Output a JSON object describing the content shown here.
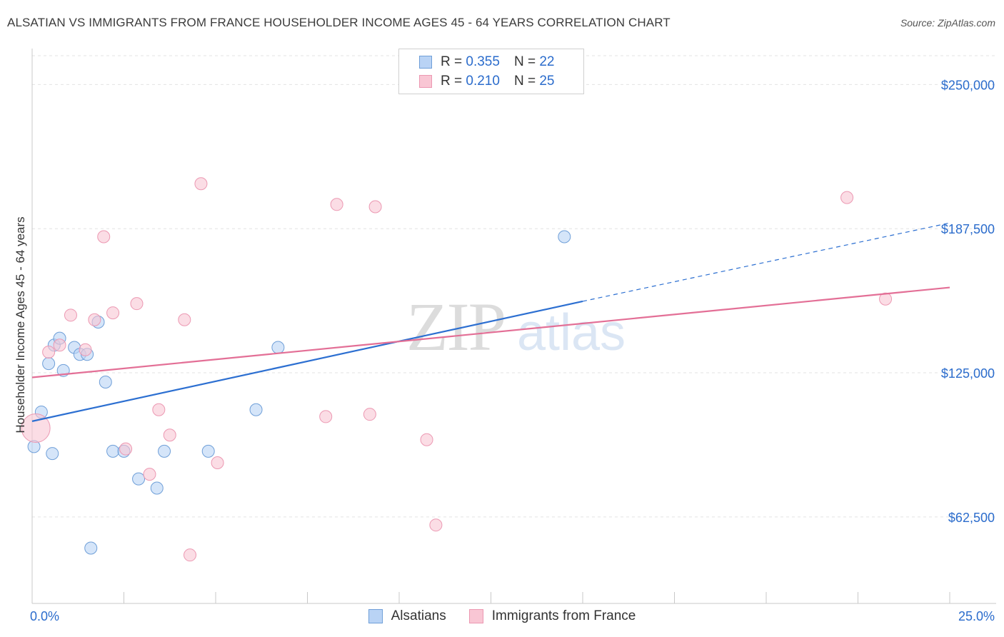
{
  "header": {
    "title": "ALSATIAN VS IMMIGRANTS FROM FRANCE HOUSEHOLDER INCOME AGES 45 - 64 YEARS CORRELATION CHART",
    "source": "Source: ZipAtlas.com"
  },
  "watermark": {
    "zip": "ZIP",
    "atlas": "atlas"
  },
  "legend": {
    "r_label": "R =",
    "n_label": "N =",
    "rows": [
      {
        "r": "0.355",
        "n": "22"
      },
      {
        "r": "0.210",
        "n": "25"
      }
    ]
  },
  "colors": {
    "alsatians_fill": "#b9d3f5",
    "alsatians_stroke": "#6f9fd8",
    "alsatians_line": "#2c6fd1",
    "france_fill": "#f9c6d4",
    "france_stroke": "#ec98b2",
    "france_line": "#e36f96",
    "value_text": "#2b6ccc"
  },
  "chart_data": {
    "type": "scatter",
    "title": "ALSATIAN VS IMMIGRANTS FROM FRANCE HOUSEHOLDER INCOME AGES 45 - 64 YEARS CORRELATION CHART",
    "xlabel": "",
    "ylabel": "Householder Income Ages 45 - 64 years",
    "xlim": [
      0,
      25
    ],
    "ylim": [
      25000,
      262500
    ],
    "x_tick_labels": [
      "0.0%",
      "25.0%"
    ],
    "y_ticks": [
      62500,
      125000,
      187500,
      250000
    ],
    "y_tick_labels": [
      "$62,500",
      "$125,000",
      "$187,500",
      "$250,000"
    ],
    "grid": true,
    "legend_position": "top-center",
    "series": [
      {
        "name": "Alsatians",
        "r": 0.355,
        "n": 22,
        "points": [
          {
            "x": 0.05,
            "y": 93000
          },
          {
            "x": 0.25,
            "y": 108000
          },
          {
            "x": 0.45,
            "y": 129000
          },
          {
            "x": 0.55,
            "y": 90000
          },
          {
            "x": 0.6,
            "y": 137000
          },
          {
            "x": 0.75,
            "y": 140000
          },
          {
            "x": 0.85,
            "y": 126000
          },
          {
            "x": 1.15,
            "y": 136000
          },
          {
            "x": 1.3,
            "y": 133000
          },
          {
            "x": 1.5,
            "y": 133000
          },
          {
            "x": 1.6,
            "y": 49000
          },
          {
            "x": 1.8,
            "y": 147000
          },
          {
            "x": 2.0,
            "y": 121000
          },
          {
            "x": 2.2,
            "y": 91000
          },
          {
            "x": 2.5,
            "y": 91000
          },
          {
            "x": 2.9,
            "y": 79000
          },
          {
            "x": 3.4,
            "y": 75000
          },
          {
            "x": 3.6,
            "y": 91000
          },
          {
            "x": 4.8,
            "y": 91000
          },
          {
            "x": 6.1,
            "y": 109000
          },
          {
            "x": 6.7,
            "y": 136000
          },
          {
            "x": 14.5,
            "y": 184000
          }
        ],
        "trend": {
          "x0": 0.0,
          "y0": 104000,
          "x1": 15.0,
          "y1": 156000,
          "dashed_to_x": 25.0,
          "dashed_to_y": 190000
        }
      },
      {
        "name": "Immigrants from France",
        "r": 0.21,
        "n": 25,
        "points": [
          {
            "x": 0.1,
            "y": 101000
          },
          {
            "x": 0.45,
            "y": 134000
          },
          {
            "x": 0.75,
            "y": 137000
          },
          {
            "x": 1.05,
            "y": 150000
          },
          {
            "x": 1.45,
            "y": 135000
          },
          {
            "x": 1.7,
            "y": 148000
          },
          {
            "x": 1.95,
            "y": 184000
          },
          {
            "x": 2.2,
            "y": 151000
          },
          {
            "x": 2.55,
            "y": 92000
          },
          {
            "x": 2.85,
            "y": 155000
          },
          {
            "x": 3.2,
            "y": 81000
          },
          {
            "x": 3.45,
            "y": 109000
          },
          {
            "x": 3.75,
            "y": 98000
          },
          {
            "x": 4.15,
            "y": 148000
          },
          {
            "x": 4.3,
            "y": 46000
          },
          {
            "x": 4.6,
            "y": 207000
          },
          {
            "x": 5.05,
            "y": 86000
          },
          {
            "x": 8.0,
            "y": 106000
          },
          {
            "x": 8.3,
            "y": 198000
          },
          {
            "x": 9.2,
            "y": 107000
          },
          {
            "x": 9.35,
            "y": 197000
          },
          {
            "x": 10.75,
            "y": 96000
          },
          {
            "x": 11.0,
            "y": 59000
          },
          {
            "x": 22.2,
            "y": 201000
          },
          {
            "x": 23.25,
            "y": 157000
          }
        ],
        "trend": {
          "x0": 0.0,
          "y0": 123000,
          "x1": 25.0,
          "y1": 162000
        }
      }
    ]
  }
}
